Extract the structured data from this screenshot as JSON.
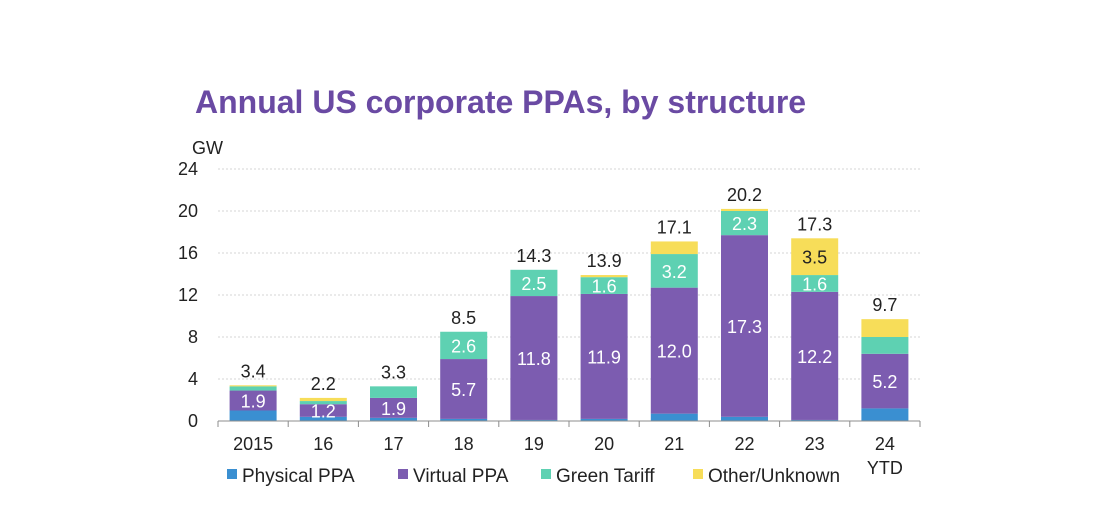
{
  "chart_data": {
    "type": "bar",
    "stacked": true,
    "title": "Annual US corporate PPAs, by structure",
    "ylabel": "GW",
    "xlabel": "",
    "ylim": [
      0,
      24
    ],
    "yticks": [
      0,
      4,
      8,
      12,
      16,
      20,
      24
    ],
    "grid": true,
    "legend_position": "bottom",
    "categories": [
      "2015",
      "16",
      "17",
      "18",
      "19",
      "20",
      "21",
      "22",
      "23",
      "24 YTD"
    ],
    "category_lines": [
      [
        "2015"
      ],
      [
        "16"
      ],
      [
        "17"
      ],
      [
        "18"
      ],
      [
        "19"
      ],
      [
        "20"
      ],
      [
        "21"
      ],
      [
        "22"
      ],
      [
        "23"
      ],
      [
        "24",
        "YTD"
      ]
    ],
    "series": [
      {
        "name": "Physical PPA",
        "color": "#3a8fd1",
        "values": [
          1.0,
          0.4,
          0.3,
          0.2,
          0.1,
          0.2,
          0.7,
          0.4,
          0.1,
          1.2
        ]
      },
      {
        "name": "Virtual PPA",
        "color": "#7c5cb0",
        "values": [
          1.9,
          1.2,
          1.9,
          5.7,
          11.8,
          11.9,
          12.0,
          17.3,
          12.2,
          5.2
        ]
      },
      {
        "name": "Green Tariff",
        "color": "#5ed1b2",
        "values": [
          0.4,
          0.3,
          1.1,
          2.6,
          2.5,
          1.6,
          3.2,
          2.3,
          1.6,
          1.6
        ]
      },
      {
        "name": "Other/Unknown",
        "color": "#f7dd59",
        "values": [
          0.1,
          0.3,
          0.0,
          0.0,
          0.0,
          0.2,
          1.2,
          0.2,
          3.5,
          1.7
        ]
      }
    ],
    "segment_labels": [
      {
        "category": 0,
        "series": 1,
        "text": "1.9",
        "color": "#ffffff"
      },
      {
        "category": 1,
        "series": 1,
        "text": "1.2",
        "color": "#ffffff"
      },
      {
        "category": 2,
        "series": 1,
        "text": "1.9",
        "color": "#ffffff"
      },
      {
        "category": 3,
        "series": 1,
        "text": "5.7",
        "color": "#ffffff"
      },
      {
        "category": 3,
        "series": 2,
        "text": "2.6",
        "color": "#ffffff"
      },
      {
        "category": 4,
        "series": 1,
        "text": "11.8",
        "color": "#ffffff"
      },
      {
        "category": 4,
        "series": 2,
        "text": "2.5",
        "color": "#ffffff"
      },
      {
        "category": 5,
        "series": 1,
        "text": "11.9",
        "color": "#ffffff"
      },
      {
        "category": 5,
        "series": 2,
        "text": "1.6",
        "color": "#ffffff"
      },
      {
        "category": 6,
        "series": 1,
        "text": "12.0",
        "color": "#ffffff"
      },
      {
        "category": 6,
        "series": 2,
        "text": "3.2",
        "color": "#ffffff"
      },
      {
        "category": 7,
        "series": 1,
        "text": "17.3",
        "color": "#ffffff"
      },
      {
        "category": 7,
        "series": 2,
        "text": "2.3",
        "color": "#ffffff"
      },
      {
        "category": 8,
        "series": 1,
        "text": "12.2",
        "color": "#ffffff"
      },
      {
        "category": 8,
        "series": 2,
        "text": "1.6",
        "color": "#ffffff"
      },
      {
        "category": 8,
        "series": 3,
        "text": "3.5",
        "color": "#222222"
      },
      {
        "category": 9,
        "series": 1,
        "text": "5.2",
        "color": "#ffffff"
      }
    ],
    "totals": [
      "3.4",
      "2.2",
      "3.3",
      "8.5",
      "14.3",
      "13.9",
      "17.1",
      "20.2",
      "17.3",
      "9.7"
    ]
  },
  "colors": {
    "title": "#6a4aa3",
    "grid": "#d4d4d4",
    "axis": "#8c8c8c"
  }
}
